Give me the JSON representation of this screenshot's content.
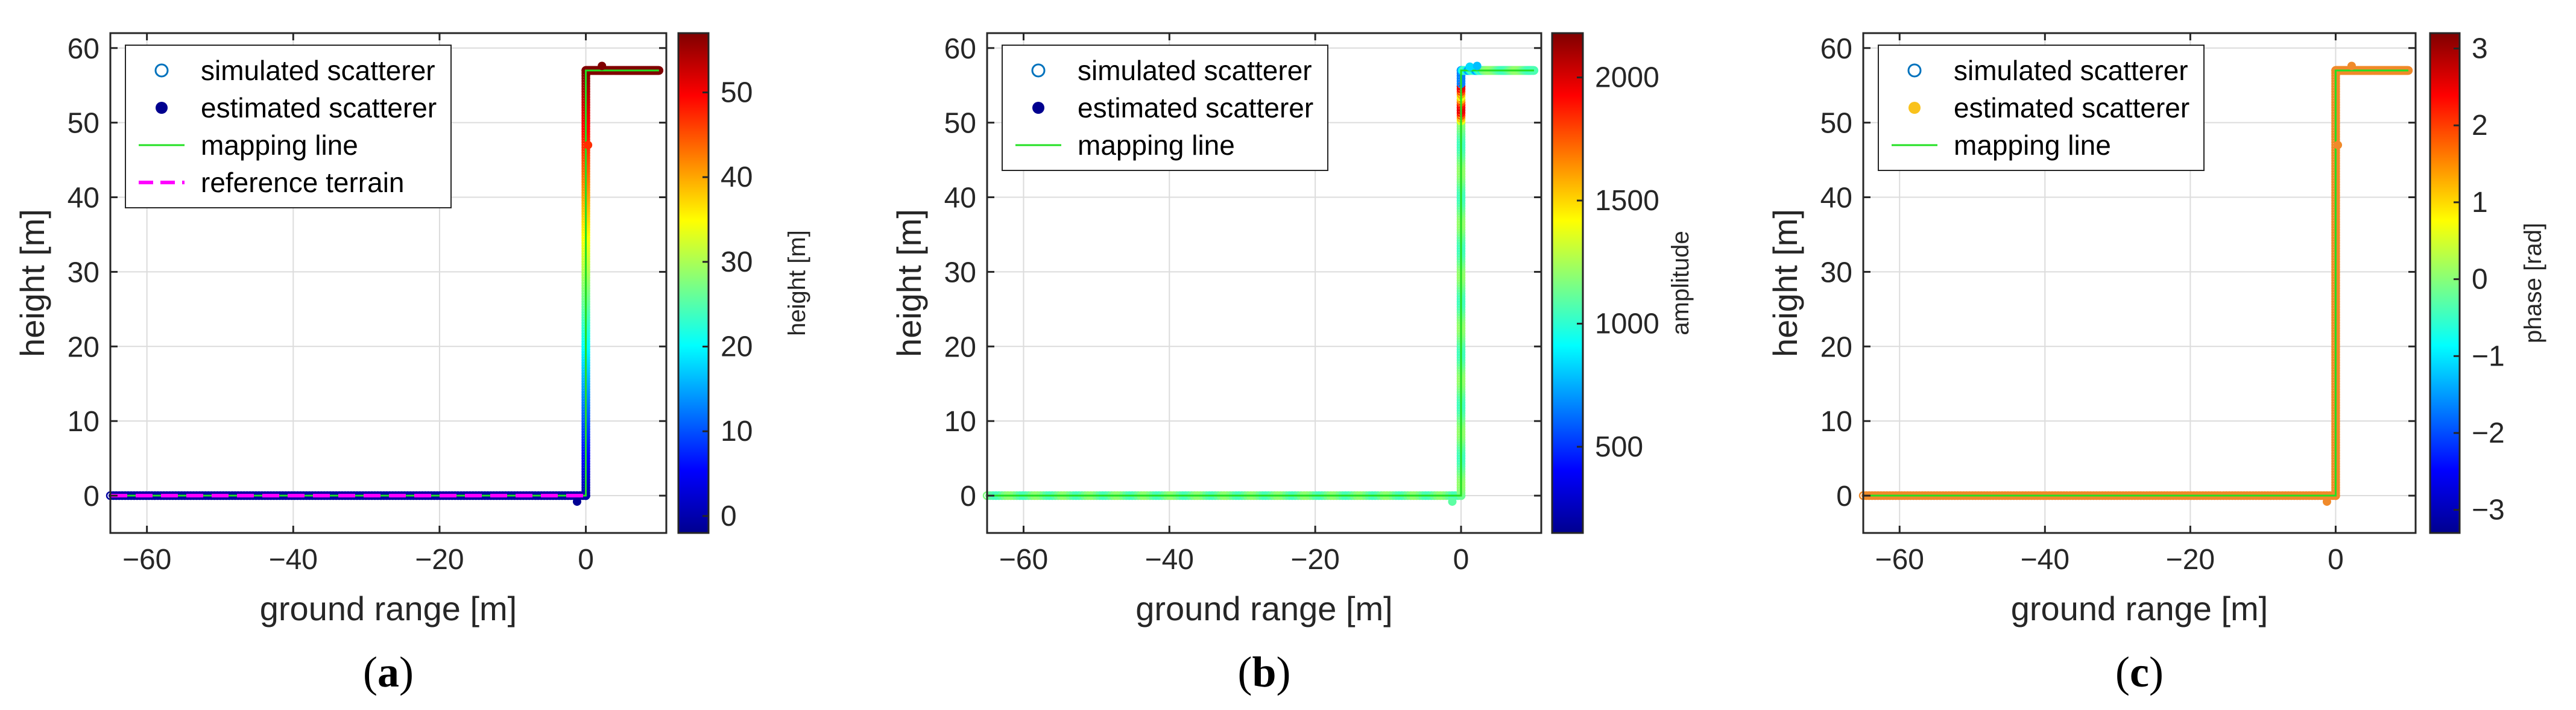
{
  "colors": {
    "axis": "#262626",
    "grid": "#dcdcdc",
    "mapping_line": "#22e022",
    "reference_terrain": "#ff00ff",
    "estimated_marker_a": "#00008f",
    "estimated_marker_b": "#00008f",
    "estimated_marker_c": "#f9c21c",
    "simulated_marker": "#0072bd",
    "phase_points": "#f08a2a"
  },
  "chart_data": [
    {
      "type": "scatter",
      "panel_label": "a",
      "xlabel": "ground range [m]",
      "ylabel": "height [m]",
      "xlim": [
        -65,
        11
      ],
      "ylim": [
        -5,
        62
      ],
      "xticks": [
        -60,
        -40,
        -20,
        0
      ],
      "xtick_labels": [
        "−60",
        "−40",
        "−20",
        "0"
      ],
      "yticks": [
        0,
        10,
        20,
        30,
        40,
        50,
        60
      ],
      "ytick_labels": [
        "0",
        "10",
        "20",
        "30",
        "40",
        "50",
        "60"
      ],
      "grid": true,
      "color_mode": "height",
      "colorbar": {
        "label": "height [m]",
        "range": [
          -2,
          57
        ],
        "ticks": [
          0,
          10,
          20,
          30,
          40,
          50
        ],
        "tick_labels": [
          "0",
          "10",
          "20",
          "30",
          "40",
          "50"
        ]
      },
      "legend": {
        "location": "top-left",
        "entries": [
          "simulated scatterer",
          "estimated scatterer",
          "mapping line",
          "reference terrain"
        ]
      },
      "series": [
        {
          "name": "simulated scatterer",
          "marker": "open-circle",
          "segments": [
            {
              "x": [
                -65,
                0
              ],
              "y": [
                0,
                0
              ]
            },
            {
              "x": [
                0,
                0
              ],
              "y": [
                0,
                57
              ]
            },
            {
              "x": [
                0,
                10
              ],
              "y": [
                57,
                57
              ]
            }
          ]
        },
        {
          "name": "estimated scatterer",
          "marker": "filled-dot",
          "outliers": [
            {
              "x": -1.2,
              "y": -0.8
            },
            {
              "x": 0.3,
              "y": 47
            },
            {
              "x": 2.2,
              "y": 57.6
            }
          ]
        },
        {
          "name": "mapping line",
          "x": [
            -65,
            0,
            0,
            10
          ],
          "y": [
            0,
            0,
            57,
            57
          ]
        },
        {
          "name": "reference terrain",
          "style": "dashed",
          "x": [
            -65,
            0
          ],
          "y": [
            0,
            0
          ]
        }
      ]
    },
    {
      "type": "scatter",
      "panel_label": "b",
      "xlabel": "ground range [m]",
      "ylabel": "height [m]",
      "xlim": [
        -65,
        11
      ],
      "ylim": [
        -5,
        62
      ],
      "xticks": [
        -60,
        -40,
        -20,
        0
      ],
      "xtick_labels": [
        "−60",
        "−40",
        "−20",
        "0"
      ],
      "yticks": [
        0,
        10,
        20,
        30,
        40,
        50,
        60
      ],
      "ytick_labels": [
        "0",
        "10",
        "20",
        "30",
        "40",
        "50",
        "60"
      ],
      "grid": true,
      "color_mode": "amplitude",
      "colorbar": {
        "label": "amplitude",
        "range": [
          150,
          2180
        ],
        "ticks": [
          500,
          1000,
          1500,
          2000
        ],
        "tick_labels": [
          "500",
          "1000",
          "1500",
          "2000"
        ]
      },
      "legend": {
        "location": "top-left",
        "entries": [
          "simulated scatterer",
          "estimated scatterer",
          "mapping line"
        ]
      },
      "series": [
        {
          "name": "simulated scatterer",
          "marker": "open-circle",
          "segments": [
            {
              "x": [
                -65,
                0
              ],
              "y": [
                0,
                0
              ]
            },
            {
              "x": [
                0,
                0
              ],
              "y": [
                0,
                57
              ]
            },
            {
              "x": [
                0,
                10
              ],
              "y": [
                57,
                57
              ]
            }
          ]
        },
        {
          "name": "estimated scatterer",
          "marker": "filled-dot",
          "outliers": [
            {
              "x": -1.2,
              "y": -0.8
            },
            {
              "x": 1.2,
              "y": 57.5
            },
            {
              "x": 2.2,
              "y": 57.6
            }
          ]
        },
        {
          "name": "mapping line",
          "x": [
            -65,
            0,
            0,
            10
          ],
          "y": [
            0,
            0,
            57,
            57
          ]
        }
      ]
    },
    {
      "type": "scatter",
      "panel_label": "c",
      "xlabel": "ground range [m]",
      "ylabel": "height [m]",
      "xlim": [
        -65,
        11
      ],
      "ylim": [
        -5,
        62
      ],
      "xticks": [
        -60,
        -40,
        -20,
        0
      ],
      "xtick_labels": [
        "−60",
        "−40",
        "−20",
        "0"
      ],
      "yticks": [
        0,
        10,
        20,
        30,
        40,
        50,
        60
      ],
      "ytick_labels": [
        "0",
        "10",
        "20",
        "30",
        "40",
        "50",
        "60"
      ],
      "grid": true,
      "color_mode": "phase",
      "colorbar": {
        "label": "phase [rad]",
        "range": [
          -3.3,
          3.2
        ],
        "ticks": [
          -3,
          -2,
          -1,
          0,
          1,
          2,
          3
        ],
        "tick_labels": [
          "−3",
          "−2",
          "−1",
          "0",
          "1",
          "2",
          "3"
        ]
      },
      "legend": {
        "location": "top-left",
        "entries": [
          "simulated scatterer",
          "estimated scatterer",
          "mapping line"
        ]
      },
      "series": [
        {
          "name": "simulated scatterer",
          "marker": "open-circle",
          "segments": [
            {
              "x": [
                -65,
                0
              ],
              "y": [
                0,
                0
              ]
            },
            {
              "x": [
                0,
                0
              ],
              "y": [
                0,
                57
              ]
            },
            {
              "x": [
                0,
                10
              ],
              "y": [
                57,
                57
              ]
            }
          ]
        },
        {
          "name": "estimated scatterer",
          "marker": "filled-dot",
          "outliers": [
            {
              "x": -1.2,
              "y": -0.8
            },
            {
              "x": 0.3,
              "y": 47
            },
            {
              "x": 2.2,
              "y": 57.6
            }
          ]
        },
        {
          "name": "mapping line",
          "x": [
            -65,
            0,
            0,
            10
          ],
          "y": [
            0,
            0,
            57,
            57
          ]
        }
      ]
    }
  ]
}
